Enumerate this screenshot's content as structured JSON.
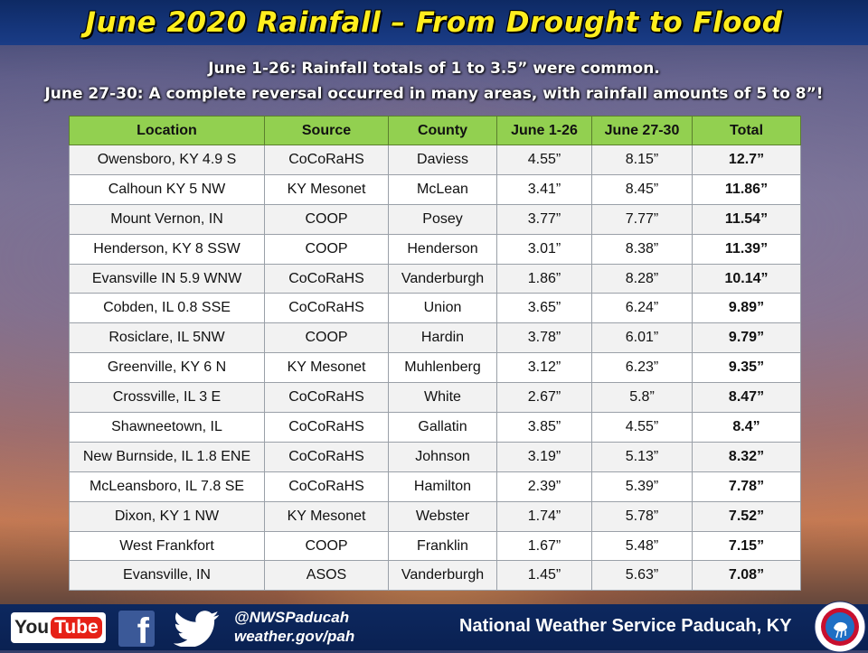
{
  "title": "June 2020 Rainfall – From Drought to Flood",
  "subtitle_line1": "June 1-26: Rainfall totals of 1 to 3.5” were common.",
  "subtitle_line2": "June 27-30: A complete reversal occurred in many areas, with rainfall amounts of 5 to 8”!",
  "table": {
    "headers": [
      "Location",
      "Source",
      "County",
      "June 1-26",
      "June 27-30",
      "Total"
    ],
    "rows": [
      [
        "Owensboro, KY 4.9 S",
        "CoCoRaHS",
        "Daviess",
        "4.55”",
        "8.15”",
        "12.7”"
      ],
      [
        "Calhoun KY 5 NW",
        "KY Mesonet",
        "McLean",
        "3.41”",
        "8.45”",
        "11.86”"
      ],
      [
        "Mount Vernon, IN",
        "COOP",
        "Posey",
        "3.77”",
        "7.77”",
        "11.54”"
      ],
      [
        "Henderson, KY 8 SSW",
        "COOP",
        "Henderson",
        "3.01”",
        "8.38”",
        "11.39”"
      ],
      [
        "Evansville IN 5.9 WNW",
        "CoCoRaHS",
        "Vanderburgh",
        "1.86”",
        "8.28”",
        "10.14”"
      ],
      [
        "Cobden, IL 0.8 SSE",
        "CoCoRaHS",
        "Union",
        "3.65”",
        "6.24”",
        "9.89”"
      ],
      [
        "Rosiclare, IL 5NW",
        "COOP",
        "Hardin",
        "3.78”",
        "6.01”",
        "9.79”"
      ],
      [
        "Greenville, KY 6 N",
        "KY Mesonet",
        "Muhlenberg",
        "3.12”",
        "6.23”",
        "9.35”"
      ],
      [
        "Crossville, IL 3 E",
        "CoCoRaHS",
        "White",
        "2.67”",
        "5.8”",
        "8.47”"
      ],
      [
        "Shawneetown, IL",
        "CoCoRaHS",
        "Gallatin",
        "3.85”",
        "4.55”",
        "8.4”"
      ],
      [
        "New Burnside, IL 1.8 ENE",
        "CoCoRaHS",
        "Johnson",
        "3.19”",
        "5.13”",
        "8.32”"
      ],
      [
        "McLeansboro, IL 7.8 SE",
        "CoCoRaHS",
        "Hamilton",
        "2.39”",
        "5.39”",
        "7.78”"
      ],
      [
        "Dixon, KY 1 NW",
        "KY Mesonet",
        "Webster",
        "1.74”",
        "5.78”",
        "7.52”"
      ],
      [
        "West Frankfort",
        "COOP",
        "Franklin",
        "1.67”",
        "5.48”",
        "7.15”"
      ],
      [
        "Evansville, IN",
        "ASOS",
        "Vanderburgh",
        "1.45”",
        "5.63”",
        "7.08”"
      ]
    ]
  },
  "footer": {
    "youtube_you": "You",
    "youtube_tube": "Tube",
    "facebook_letter": "f",
    "twitter_handle": "@NWSPaducah",
    "website": "weather.gov/pah",
    "office_name": "National Weather Service Paducah, KY",
    "icons": [
      "youtube-icon",
      "facebook-icon",
      "twitter-icon",
      "nws-logo"
    ]
  },
  "colors": {
    "title_text": "#ffee1e",
    "title_bar": "#15357a",
    "header_fill": "#92d050",
    "row_light": "#f2f2f2",
    "row_white": "#ffffff",
    "footer_bar": "#0d285f"
  }
}
